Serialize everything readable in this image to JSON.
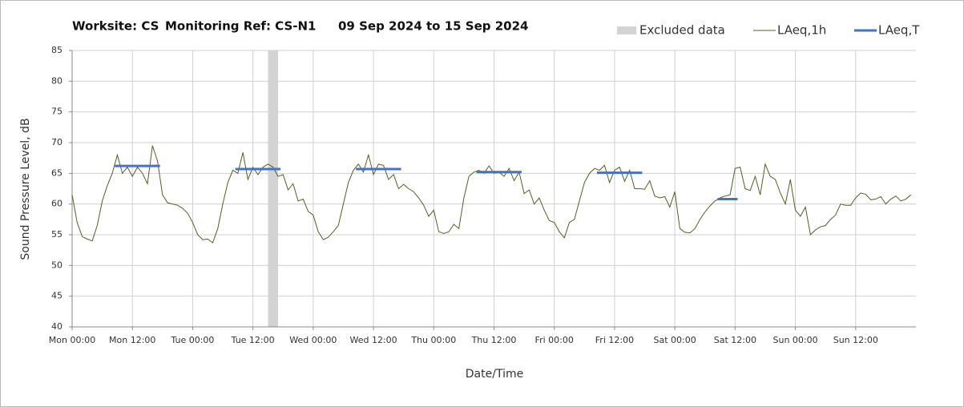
{
  "chart_data": {
    "type": "line",
    "title_parts": [
      "Worksite: CS",
      "Monitoring Ref: CS-N1",
      "09 Sep 2024 to 15 Sep 2024"
    ],
    "x_label": "Date/Time",
    "y_label": "Sound Pressure Level, dB",
    "xlim": [
      0,
      168
    ],
    "xticks": [
      {
        "value": 0,
        "label": "Mon 00:00"
      },
      {
        "value": 12,
        "label": "Mon 12:00"
      },
      {
        "value": 24,
        "label": "Tue 00:00"
      },
      {
        "value": 36,
        "label": "Tue 12:00"
      },
      {
        "value": 48,
        "label": "Wed 00:00"
      },
      {
        "value": 60,
        "label": "Wed 12:00"
      },
      {
        "value": 72,
        "label": "Thu 00:00"
      },
      {
        "value": 84,
        "label": "Thu 12:00"
      },
      {
        "value": 96,
        "label": "Fri 00:00"
      },
      {
        "value": 108,
        "label": "Fri 12:00"
      },
      {
        "value": 120,
        "label": "Sat 00:00"
      },
      {
        "value": 132,
        "label": "Sat 12:00"
      },
      {
        "value": 144,
        "label": "Sun 00:00"
      },
      {
        "value": 156,
        "label": "Sun 12:00"
      }
    ],
    "ylim": [
      40,
      85
    ],
    "yticks": [
      40,
      45,
      50,
      55,
      60,
      65,
      70,
      75,
      80,
      85
    ],
    "grid": true,
    "excluded": {
      "name": "Excluded data",
      "color": "#d3d3d3",
      "x": [
        39,
        41
      ]
    },
    "series": [
      {
        "name": "LAeq,1h",
        "color": "#4f6228",
        "x": [
          0,
          1,
          2,
          3,
          4,
          5,
          6,
          7,
          8,
          9,
          10,
          11,
          12,
          13,
          14,
          15,
          16,
          17,
          18,
          19,
          20,
          21,
          22,
          23,
          24,
          25,
          26,
          27,
          28,
          29,
          30,
          31,
          32,
          33,
          34,
          35,
          36,
          37,
          38,
          39,
          40,
          41,
          42,
          43,
          44,
          45,
          46,
          47,
          48,
          49,
          50,
          51,
          52,
          53,
          54,
          55,
          56,
          57,
          58,
          59,
          60,
          61,
          62,
          63,
          64,
          65,
          66,
          67,
          68,
          69,
          70,
          71,
          72,
          73,
          74,
          75,
          76,
          77,
          78,
          79,
          80,
          81,
          82,
          83,
          84,
          85,
          86,
          87,
          88,
          89,
          90,
          91,
          92,
          93,
          94,
          95,
          96,
          97,
          98,
          99,
          100,
          101,
          102,
          103,
          104,
          105,
          106,
          107,
          108,
          109,
          110,
          111,
          112,
          113,
          114,
          115,
          116,
          117,
          118,
          119,
          120,
          121,
          122,
          123,
          124,
          125,
          126,
          127,
          128,
          129,
          130,
          131,
          132,
          133,
          134,
          135,
          136,
          137,
          138,
          139,
          140,
          141,
          142,
          143,
          144,
          145,
          146,
          147,
          148,
          149,
          150,
          151,
          152,
          153,
          154,
          155,
          156,
          157,
          158,
          159,
          160,
          161,
          162,
          163,
          164,
          165,
          166,
          167
        ],
        "values": [
          61.5,
          57,
          54.7,
          54.3,
          54,
          56.5,
          60.5,
          63,
          65,
          68,
          65,
          66,
          64.5,
          66,
          65,
          63.3,
          69.5,
          67,
          61.5,
          60.2,
          60,
          59.8,
          59.3,
          58.5,
          57,
          55,
          54.2,
          54.3,
          53.7,
          56,
          60,
          63.5,
          65.5,
          65,
          68.4,
          64,
          66,
          64.8,
          66,
          66.5,
          66,
          64.5,
          64.8,
          62.3,
          63.3,
          60.5,
          60.8,
          58.8,
          58.2,
          55.5,
          54.2,
          54.6,
          55.5,
          56.5,
          60,
          63.5,
          65.5,
          66.5,
          65.2,
          68,
          64.8,
          66.5,
          66.3,
          64,
          64.8,
          62.5,
          63.2,
          62.5,
          62,
          61,
          59.8,
          58,
          59,
          55.5,
          55.2,
          55.5,
          56.7,
          56,
          61,
          64.5,
          65.2,
          65.5,
          65,
          66.2,
          65,
          65.2,
          64.5,
          65.8,
          63.8,
          65.2,
          61.7,
          62.3,
          60,
          61,
          59,
          57.3,
          57,
          55.5,
          54.5,
          57,
          57.5,
          60.5,
          63.5,
          65,
          65.8,
          65.5,
          66.3,
          63.5,
          65.5,
          66,
          63.7,
          65.5,
          62.5,
          62.5,
          62.4,
          63.8,
          61.3,
          61,
          61.2,
          59.5,
          62,
          56,
          55.4,
          55.3,
          56,
          57.5,
          58.7,
          59.7,
          60.5,
          61,
          61.3,
          61.5,
          65.8,
          66,
          62.5,
          62.2,
          64.5,
          61.5,
          66.5,
          64.5,
          64,
          61.8,
          60,
          64,
          59,
          58,
          59.5,
          55,
          55.8,
          56.3,
          56.5,
          57.5,
          58.2,
          60,
          59.8,
          59.8,
          61,
          61.8,
          61.6,
          60.7,
          60.8,
          61.2,
          60,
          60.8,
          61.3,
          60.5,
          60.8,
          61.5
        ]
      },
      {
        "name": "LAeq,T",
        "color": "#4472c4",
        "segments": [
          {
            "x": [
              8.5,
              17.5
            ],
            "value": 66.2
          },
          {
            "x": [
              32.5,
              41.5
            ],
            "value": 65.7
          },
          {
            "x": [
              56.5,
              65.5
            ],
            "value": 65.7
          },
          {
            "x": [
              80.5,
              89.5
            ],
            "value": 65.2
          },
          {
            "x": [
              104.5,
              113.5
            ],
            "value": 65.1
          },
          {
            "x": [
              128.5,
              132.5
            ],
            "value": 60.8
          }
        ]
      }
    ]
  }
}
